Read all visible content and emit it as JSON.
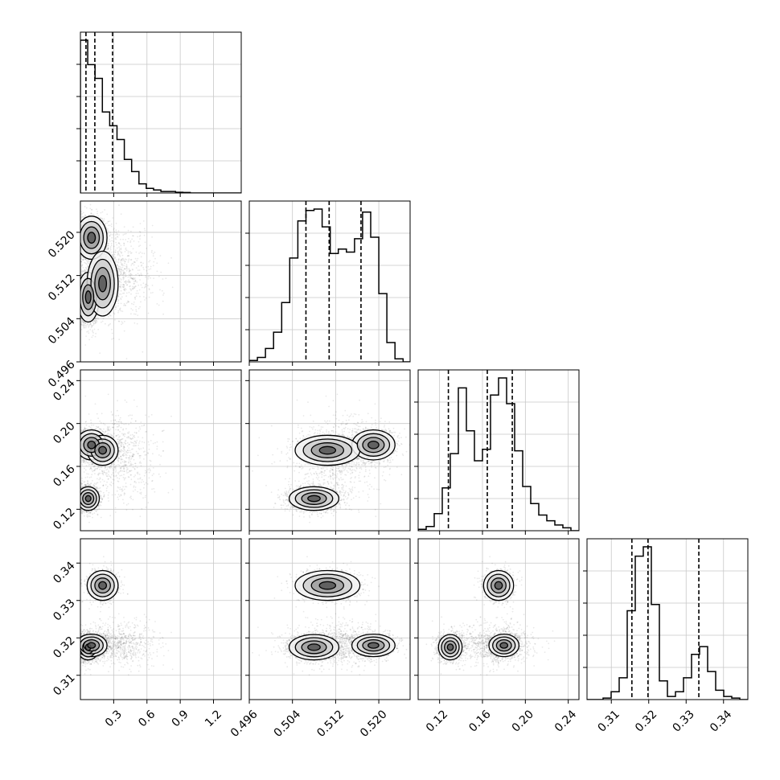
{
  "chart_data": {
    "type": "corner",
    "title": "",
    "grid": true,
    "parameters": [
      "",
      "",
      "",
      ""
    ],
    "ranges": [
      [
        0.0,
        1.45
      ],
      [
        0.496,
        0.5258
      ],
      [
        0.1,
        0.25
      ],
      [
        0.3035,
        0.3465
      ]
    ],
    "ticks": [
      [
        0.3,
        0.6,
        0.9,
        1.2
      ],
      [
        0.496,
        0.504,
        0.512,
        0.52
      ],
      [
        0.12,
        0.16,
        0.2,
        0.24
      ],
      [
        0.31,
        0.32,
        0.33,
        0.34
      ]
    ],
    "tick_labels": [
      [
        "0.3",
        "0.6",
        "0.9",
        "1.2"
      ],
      [
        "0.496",
        "0.504",
        "0.512",
        "0.520"
      ],
      [
        "0.12",
        "0.16",
        "0.20",
        "0.24"
      ],
      [
        "0.31",
        "0.32",
        "0.33",
        "0.34"
      ]
    ],
    "quantiles": [
      [
        0.05,
        0.13,
        0.29
      ],
      [
        0.5065,
        0.5108,
        0.5167
      ],
      [
        0.1282,
        0.1645,
        0.1878
      ],
      [
        0.3155,
        0.3198,
        0.3334
      ]
    ],
    "histograms": [
      {
        "bin_width": 0.066,
        "counts": [
          100,
          84,
          75,
          53,
          44,
          35,
          22,
          14,
          6,
          3,
          2,
          1,
          1,
          0.5,
          0.3,
          0,
          0,
          0,
          0,
          0,
          0,
          0
        ]
      },
      {
        "bin_width": 0.0015,
        "counts": [
          1,
          3,
          9,
          20,
          40,
          70,
          95,
          102,
          103,
          91,
          73,
          76,
          74,
          83,
          101,
          84,
          46,
          13,
          2,
          0
        ]
      },
      {
        "bin_width": 0.0075,
        "counts": [
          1,
          3,
          12,
          30,
          54,
          100,
          70,
          49,
          57,
          95,
          107,
          89,
          56,
          31,
          19,
          11,
          7,
          4,
          2,
          0
        ]
      },
      {
        "bin_width": 0.00215,
        "counts": [
          0,
          0,
          1,
          5,
          14,
          57,
          92,
          98,
          61,
          12,
          2,
          5,
          14,
          29,
          34,
          18,
          6,
          2,
          1,
          0
        ]
      }
    ],
    "clusters": [
      {
        "weight": 0.35,
        "mean": [
          0.07,
          0.508,
          0.13,
          0.3175
        ],
        "sd": [
          0.05,
          0.0023,
          0.0055,
          0.0017
        ]
      },
      {
        "weight": 0.3,
        "mean": [
          0.1,
          0.519,
          0.18,
          0.318
        ],
        "sd": [
          0.07,
          0.002,
          0.007,
          0.0015
        ]
      },
      {
        "weight": 0.2,
        "mean": [
          0.2,
          0.5105,
          0.175,
          0.334
        ],
        "sd": [
          0.07,
          0.003,
          0.007,
          0.002
        ]
      },
      {
        "weight": 0.15,
        "mean": [
          0.35,
          0.5125,
          0.17,
          0.3185
        ],
        "sd": [
          0.16,
          0.004,
          0.02,
          0.003
        ]
      }
    ]
  }
}
